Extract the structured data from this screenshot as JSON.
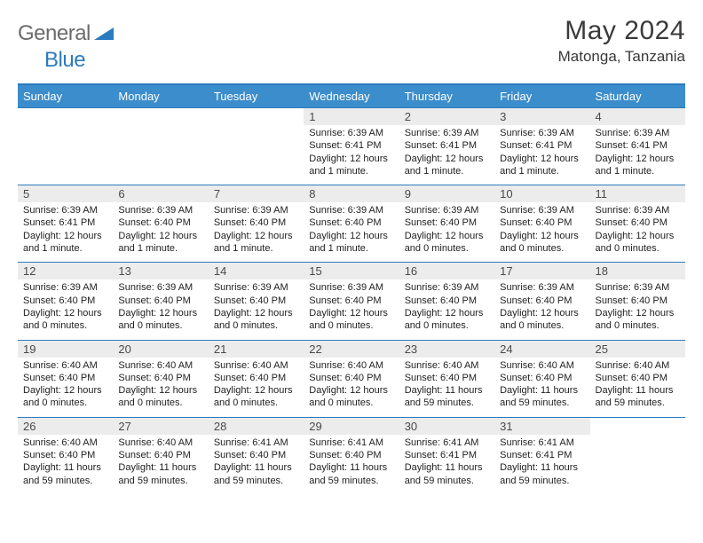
{
  "colors": {
    "header_bg": "#3c8dcb",
    "header_text": "#ffffff",
    "border": "#2b7bbf",
    "daynum_bg": "#ececec",
    "body_bg": "#ffffff",
    "text": "#222222",
    "logo_gray": "#6b6b6b",
    "logo_blue": "#2b7bbf"
  },
  "logo": {
    "general": "General",
    "blue": "Blue"
  },
  "title": "May 2024",
  "location": "Matonga, Tanzania",
  "day_headers": [
    "Sunday",
    "Monday",
    "Tuesday",
    "Wednesday",
    "Thursday",
    "Friday",
    "Saturday"
  ],
  "weeks": [
    [
      {
        "n": "",
        "sr": "",
        "ss": "",
        "dl1": "",
        "dl2": "",
        "empty": true
      },
      {
        "n": "",
        "sr": "",
        "ss": "",
        "dl1": "",
        "dl2": "",
        "empty": true
      },
      {
        "n": "",
        "sr": "",
        "ss": "",
        "dl1": "",
        "dl2": "",
        "empty": true
      },
      {
        "n": "1",
        "sr": "Sunrise: 6:39 AM",
        "ss": "Sunset: 6:41 PM",
        "dl1": "Daylight: 12 hours",
        "dl2": "and 1 minute."
      },
      {
        "n": "2",
        "sr": "Sunrise: 6:39 AM",
        "ss": "Sunset: 6:41 PM",
        "dl1": "Daylight: 12 hours",
        "dl2": "and 1 minute."
      },
      {
        "n": "3",
        "sr": "Sunrise: 6:39 AM",
        "ss": "Sunset: 6:41 PM",
        "dl1": "Daylight: 12 hours",
        "dl2": "and 1 minute."
      },
      {
        "n": "4",
        "sr": "Sunrise: 6:39 AM",
        "ss": "Sunset: 6:41 PM",
        "dl1": "Daylight: 12 hours",
        "dl2": "and 1 minute."
      }
    ],
    [
      {
        "n": "5",
        "sr": "Sunrise: 6:39 AM",
        "ss": "Sunset: 6:41 PM",
        "dl1": "Daylight: 12 hours",
        "dl2": "and 1 minute."
      },
      {
        "n": "6",
        "sr": "Sunrise: 6:39 AM",
        "ss": "Sunset: 6:40 PM",
        "dl1": "Daylight: 12 hours",
        "dl2": "and 1 minute."
      },
      {
        "n": "7",
        "sr": "Sunrise: 6:39 AM",
        "ss": "Sunset: 6:40 PM",
        "dl1": "Daylight: 12 hours",
        "dl2": "and 1 minute."
      },
      {
        "n": "8",
        "sr": "Sunrise: 6:39 AM",
        "ss": "Sunset: 6:40 PM",
        "dl1": "Daylight: 12 hours",
        "dl2": "and 1 minute."
      },
      {
        "n": "9",
        "sr": "Sunrise: 6:39 AM",
        "ss": "Sunset: 6:40 PM",
        "dl1": "Daylight: 12 hours",
        "dl2": "and 0 minutes."
      },
      {
        "n": "10",
        "sr": "Sunrise: 6:39 AM",
        "ss": "Sunset: 6:40 PM",
        "dl1": "Daylight: 12 hours",
        "dl2": "and 0 minutes."
      },
      {
        "n": "11",
        "sr": "Sunrise: 6:39 AM",
        "ss": "Sunset: 6:40 PM",
        "dl1": "Daylight: 12 hours",
        "dl2": "and 0 minutes."
      }
    ],
    [
      {
        "n": "12",
        "sr": "Sunrise: 6:39 AM",
        "ss": "Sunset: 6:40 PM",
        "dl1": "Daylight: 12 hours",
        "dl2": "and 0 minutes."
      },
      {
        "n": "13",
        "sr": "Sunrise: 6:39 AM",
        "ss": "Sunset: 6:40 PM",
        "dl1": "Daylight: 12 hours",
        "dl2": "and 0 minutes."
      },
      {
        "n": "14",
        "sr": "Sunrise: 6:39 AM",
        "ss": "Sunset: 6:40 PM",
        "dl1": "Daylight: 12 hours",
        "dl2": "and 0 minutes."
      },
      {
        "n": "15",
        "sr": "Sunrise: 6:39 AM",
        "ss": "Sunset: 6:40 PM",
        "dl1": "Daylight: 12 hours",
        "dl2": "and 0 minutes."
      },
      {
        "n": "16",
        "sr": "Sunrise: 6:39 AM",
        "ss": "Sunset: 6:40 PM",
        "dl1": "Daylight: 12 hours",
        "dl2": "and 0 minutes."
      },
      {
        "n": "17",
        "sr": "Sunrise: 6:39 AM",
        "ss": "Sunset: 6:40 PM",
        "dl1": "Daylight: 12 hours",
        "dl2": "and 0 minutes."
      },
      {
        "n": "18",
        "sr": "Sunrise: 6:39 AM",
        "ss": "Sunset: 6:40 PM",
        "dl1": "Daylight: 12 hours",
        "dl2": "and 0 minutes."
      }
    ],
    [
      {
        "n": "19",
        "sr": "Sunrise: 6:40 AM",
        "ss": "Sunset: 6:40 PM",
        "dl1": "Daylight: 12 hours",
        "dl2": "and 0 minutes."
      },
      {
        "n": "20",
        "sr": "Sunrise: 6:40 AM",
        "ss": "Sunset: 6:40 PM",
        "dl1": "Daylight: 12 hours",
        "dl2": "and 0 minutes."
      },
      {
        "n": "21",
        "sr": "Sunrise: 6:40 AM",
        "ss": "Sunset: 6:40 PM",
        "dl1": "Daylight: 12 hours",
        "dl2": "and 0 minutes."
      },
      {
        "n": "22",
        "sr": "Sunrise: 6:40 AM",
        "ss": "Sunset: 6:40 PM",
        "dl1": "Daylight: 12 hours",
        "dl2": "and 0 minutes."
      },
      {
        "n": "23",
        "sr": "Sunrise: 6:40 AM",
        "ss": "Sunset: 6:40 PM",
        "dl1": "Daylight: 11 hours",
        "dl2": "and 59 minutes."
      },
      {
        "n": "24",
        "sr": "Sunrise: 6:40 AM",
        "ss": "Sunset: 6:40 PM",
        "dl1": "Daylight: 11 hours",
        "dl2": "and 59 minutes."
      },
      {
        "n": "25",
        "sr": "Sunrise: 6:40 AM",
        "ss": "Sunset: 6:40 PM",
        "dl1": "Daylight: 11 hours",
        "dl2": "and 59 minutes."
      }
    ],
    [
      {
        "n": "26",
        "sr": "Sunrise: 6:40 AM",
        "ss": "Sunset: 6:40 PM",
        "dl1": "Daylight: 11 hours",
        "dl2": "and 59 minutes."
      },
      {
        "n": "27",
        "sr": "Sunrise: 6:40 AM",
        "ss": "Sunset: 6:40 PM",
        "dl1": "Daylight: 11 hours",
        "dl2": "and 59 minutes."
      },
      {
        "n": "28",
        "sr": "Sunrise: 6:41 AM",
        "ss": "Sunset: 6:40 PM",
        "dl1": "Daylight: 11 hours",
        "dl2": "and 59 minutes."
      },
      {
        "n": "29",
        "sr": "Sunrise: 6:41 AM",
        "ss": "Sunset: 6:40 PM",
        "dl1": "Daylight: 11 hours",
        "dl2": "and 59 minutes."
      },
      {
        "n": "30",
        "sr": "Sunrise: 6:41 AM",
        "ss": "Sunset: 6:41 PM",
        "dl1": "Daylight: 11 hours",
        "dl2": "and 59 minutes."
      },
      {
        "n": "31",
        "sr": "Sunrise: 6:41 AM",
        "ss": "Sunset: 6:41 PM",
        "dl1": "Daylight: 11 hours",
        "dl2": "and 59 minutes."
      },
      {
        "n": "",
        "sr": "",
        "ss": "",
        "dl1": "",
        "dl2": "",
        "empty": true
      }
    ]
  ]
}
